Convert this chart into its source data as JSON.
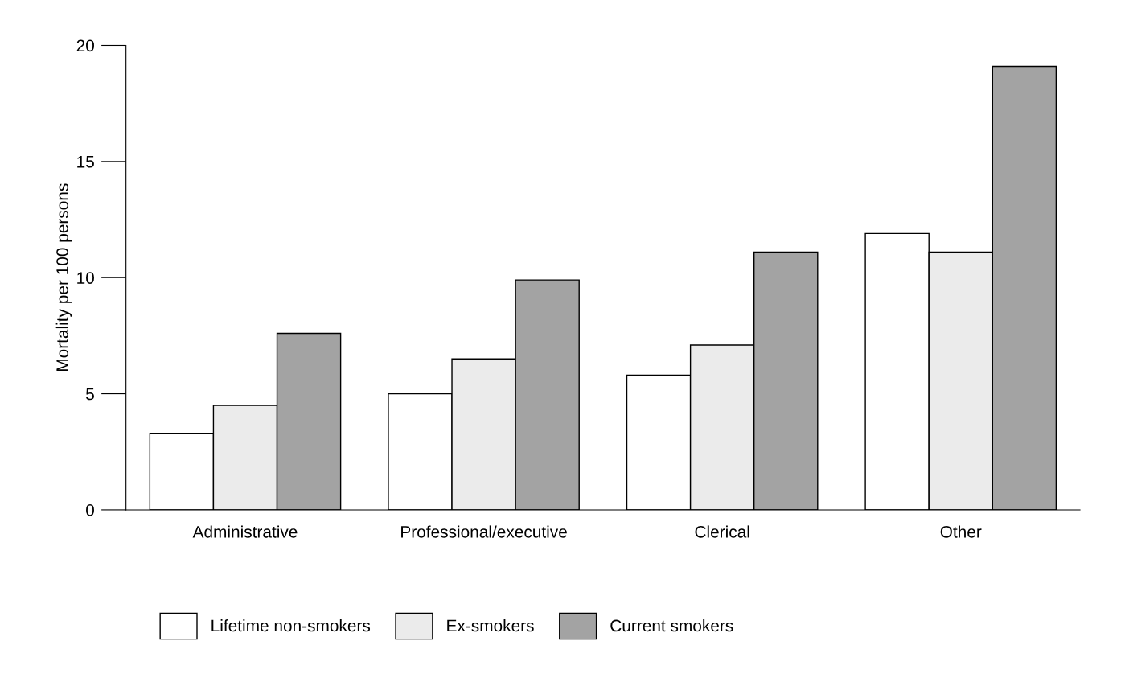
{
  "chart_data": {
    "type": "bar",
    "ylabel": "Mortality per 100 persons",
    "categories": [
      "Administrative",
      "Professional/executive",
      "Clerical",
      "Other"
    ],
    "series": [
      {
        "name": "Lifetime non-smokers",
        "color": "#ffffff",
        "values": [
          3.3,
          5.0,
          5.8,
          11.9
        ]
      },
      {
        "name": "Ex-smokers",
        "color": "#ebebeb",
        "values": [
          4.5,
          6.5,
          7.1,
          11.1
        ]
      },
      {
        "name": "Current smokers",
        "color": "#a3a3a3",
        "values": [
          7.6,
          9.9,
          11.1,
          19.1
        ]
      }
    ],
    "ylim": [
      0,
      20
    ],
    "yticks": [
      0,
      5,
      10,
      15,
      20
    ],
    "grid": false,
    "legend": "bottom"
  }
}
